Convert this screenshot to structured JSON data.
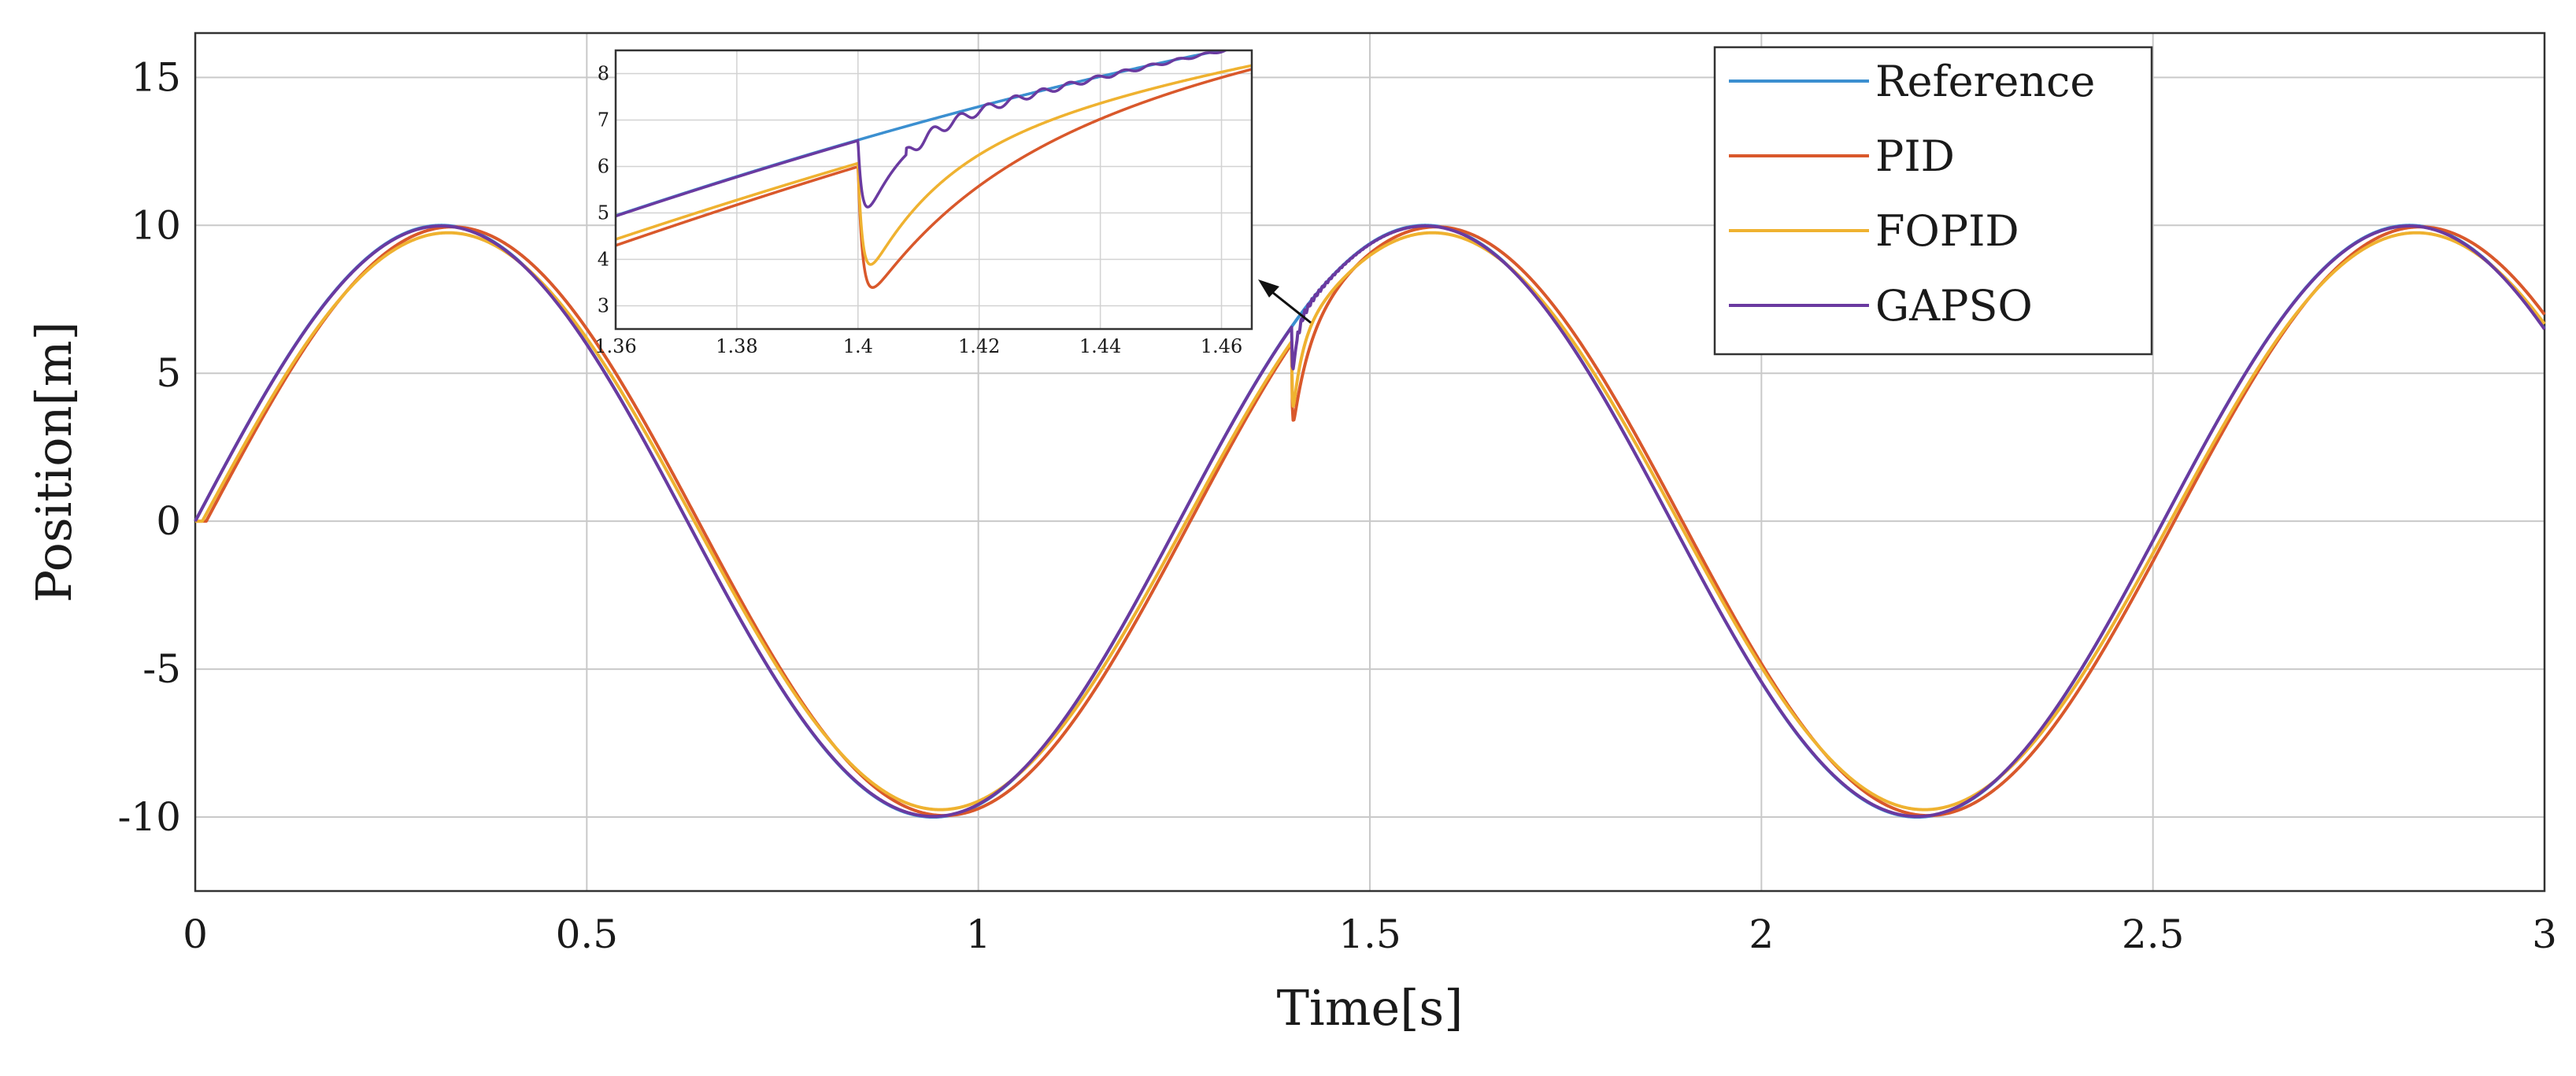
{
  "chart_data": {
    "type": "line",
    "title": "",
    "xlabel": "Time[s]",
    "ylabel": "Position[m]",
    "xlim": [
      0,
      3
    ],
    "ylim": [
      -12.5,
      16.5
    ],
    "xticks": [
      0,
      0.5,
      1,
      1.5,
      2,
      2.5,
      3
    ],
    "xtick_labels": [
      "0",
      "0.5",
      "1",
      "1.5",
      "2",
      "2.5",
      "3"
    ],
    "yticks": [
      15,
      10,
      5,
      0,
      -5,
      -10
    ],
    "ytick_labels": [
      "15",
      "10",
      "5",
      "0",
      "-5",
      "-10"
    ],
    "grid": true,
    "legend": "top-right",
    "signal": {
      "amplitude": 10,
      "angular_frequency": 5,
      "disturbance_time": 1.4
    },
    "series": [
      {
        "name": "Reference",
        "color": "#3b8fd0",
        "lag": 0,
        "amp": 10,
        "dip": 0,
        "recovery_tau": 0.01,
        "ripple": 0
      },
      {
        "name": "PID",
        "color": "#d9582b",
        "lag": 0.014,
        "amp": 9.95,
        "dip": 3.2,
        "recovery_tau": 0.02,
        "ripple": 0
      },
      {
        "name": "FOPID",
        "color": "#efb230",
        "lag": 0.009,
        "amp": 9.75,
        "dip": 2.9,
        "recovery_tau": 0.012,
        "ripple": 0
      },
      {
        "name": "GAPSO",
        "color": "#6a3aa0",
        "lag": 0.0,
        "amp": 9.98,
        "dip": 2.25,
        "recovery_tau": 0.006,
        "ripple": 0.18
      }
    ],
    "inset": {
      "xlim": [
        1.36,
        1.465
      ],
      "ylim": [
        2.5,
        8.5
      ],
      "xticks": [
        1.36,
        1.38,
        1.4,
        1.42,
        1.44,
        1.46
      ],
      "xtick_labels": [
        "1.36",
        "1.38",
        "1.4",
        "1.42",
        "1.44",
        "1.46"
      ],
      "yticks": [
        3,
        4,
        5,
        6,
        7,
        8
      ],
      "ytick_labels": [
        "3",
        "4",
        "5",
        "6",
        "7",
        "8"
      ],
      "annotation": "arrow pointing from disturbance at t=1.4 to zoom inset"
    }
  }
}
